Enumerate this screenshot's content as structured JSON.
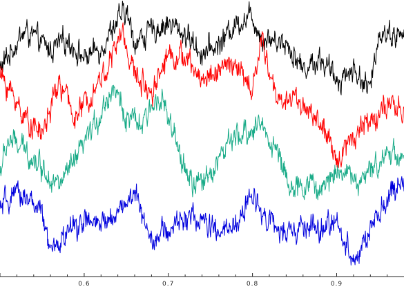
{
  "chart_data": {
    "type": "line",
    "title": "",
    "xlabel": "",
    "ylabel": "",
    "xlim": [
      0.5,
      0.98
    ],
    "ylim": [
      0,
      1
    ],
    "grid": false,
    "legend": "none",
    "x_ticks": [
      {
        "value": 0.6,
        "label": "0.6"
      },
      {
        "value": 0.7,
        "label": "0.7"
      },
      {
        "value": 0.8,
        "label": "0.8"
      },
      {
        "value": 0.9,
        "label": "0.9"
      }
    ],
    "series": [
      {
        "color": "#000000",
        "x": [
          0.5,
          0.52,
          0.53,
          0.56,
          0.58,
          0.6,
          0.62,
          0.635,
          0.65,
          0.66,
          0.68,
          0.7,
          0.72,
          0.74,
          0.76,
          0.78,
          0.8,
          0.81,
          0.84,
          0.86,
          0.88,
          0.9,
          0.92,
          0.94,
          0.95,
          0.98
        ],
        "y": [
          0.76,
          0.86,
          0.9,
          0.83,
          0.87,
          0.8,
          0.84,
          0.92,
          0.97,
          0.86,
          0.9,
          0.93,
          0.89,
          0.82,
          0.85,
          0.93,
          0.96,
          0.88,
          0.86,
          0.76,
          0.8,
          0.72,
          0.76,
          0.68,
          0.9,
          0.88
        ]
      },
      {
        "color": "#ff0000",
        "x": [
          0.5,
          0.52,
          0.53,
          0.55,
          0.57,
          0.59,
          0.61,
          0.63,
          0.645,
          0.66,
          0.68,
          0.7,
          0.72,
          0.74,
          0.76,
          0.78,
          0.8,
          0.81,
          0.83,
          0.85,
          0.88,
          0.9,
          0.91,
          0.93,
          0.96,
          0.98
        ],
        "y": [
          0.74,
          0.64,
          0.58,
          0.52,
          0.71,
          0.58,
          0.68,
          0.78,
          0.9,
          0.74,
          0.68,
          0.82,
          0.8,
          0.72,
          0.76,
          0.78,
          0.67,
          0.87,
          0.64,
          0.66,
          0.56,
          0.42,
          0.48,
          0.55,
          0.62,
          0.6
        ]
      },
      {
        "color": "#1aab88",
        "x": [
          0.5,
          0.51,
          0.53,
          0.55,
          0.57,
          0.59,
          0.61,
          0.62,
          0.635,
          0.65,
          0.67,
          0.69,
          0.71,
          0.73,
          0.75,
          0.77,
          0.79,
          0.81,
          0.83,
          0.85,
          0.87,
          0.88,
          0.9,
          0.93,
          0.96,
          0.98
        ],
        "y": [
          0.38,
          0.5,
          0.46,
          0.4,
          0.33,
          0.42,
          0.54,
          0.6,
          0.7,
          0.58,
          0.55,
          0.68,
          0.47,
          0.32,
          0.38,
          0.48,
          0.52,
          0.56,
          0.45,
          0.3,
          0.35,
          0.3,
          0.4,
          0.34,
          0.46,
          0.44
        ]
      },
      {
        "color": "#0000dd",
        "x": [
          0.5,
          0.51,
          0.53,
          0.55,
          0.56,
          0.58,
          0.6,
          0.62,
          0.64,
          0.66,
          0.68,
          0.7,
          0.72,
          0.74,
          0.76,
          0.78,
          0.8,
          0.82,
          0.84,
          0.86,
          0.88,
          0.9,
          0.92,
          0.93,
          0.96,
          0.98
        ],
        "y": [
          0.24,
          0.28,
          0.3,
          0.22,
          0.08,
          0.16,
          0.2,
          0.18,
          0.24,
          0.3,
          0.14,
          0.16,
          0.22,
          0.2,
          0.15,
          0.18,
          0.3,
          0.2,
          0.14,
          0.18,
          0.16,
          0.2,
          0.06,
          0.1,
          0.28,
          0.34
        ]
      }
    ]
  }
}
